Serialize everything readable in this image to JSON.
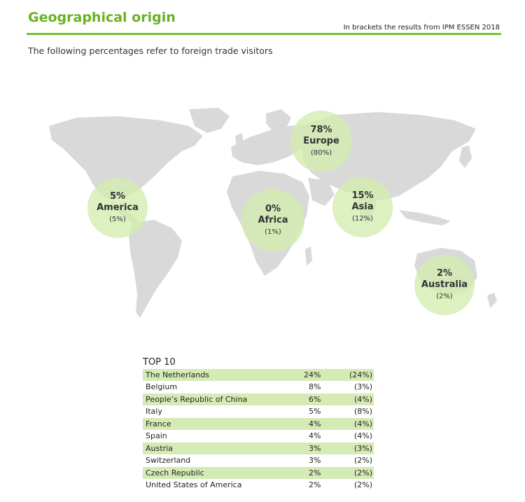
{
  "header": {
    "title": "Geographical origin",
    "bracket_note": "In brackets the results from IPM ESSEN 2018",
    "subtitle": "The following percentages refer to foreign trade visitors"
  },
  "regions": [
    {
      "key": "america",
      "pct": "5%",
      "name": "America",
      "prev": "(5%)"
    },
    {
      "key": "europe",
      "pct": "78%",
      "name": "Europe",
      "prev": "(80%)"
    },
    {
      "key": "africa",
      "pct": "0%",
      "name": "Africa",
      "prev": "(1%)"
    },
    {
      "key": "asia",
      "pct": "15%",
      "name": "Asia",
      "prev": "(12%)"
    },
    {
      "key": "australia",
      "pct": "2%",
      "name": "Australia",
      "prev": "(2%)"
    }
  ],
  "top10": {
    "title": "TOP 10",
    "rows": [
      {
        "country": "The Netherlands",
        "pct": "24%",
        "prev": "(24%)"
      },
      {
        "country": "Belgium",
        "pct": "8%",
        "prev": "(3%)"
      },
      {
        "country": "People’s Republic of China",
        "pct": "6%",
        "prev": "(4%)"
      },
      {
        "country": "Italy",
        "pct": "5%",
        "prev": "(8%)"
      },
      {
        "country": "France",
        "pct": "4%",
        "prev": "(4%)"
      },
      {
        "country": "Spain",
        "pct": "4%",
        "prev": "(4%)"
      },
      {
        "country": "Austria",
        "pct": "3%",
        "prev": "(3%)"
      },
      {
        "country": "Switzerland",
        "pct": "3%",
        "prev": "(2%)"
      },
      {
        "country": "Czech Republic",
        "pct": "2%",
        "prev": "(2%)"
      },
      {
        "country": "United States of America",
        "pct": "2%",
        "prev": "(2%)"
      }
    ]
  },
  "colors": {
    "accent": "#6ab023",
    "map_land": "#d9d9d9",
    "bubble": "#d2ecae",
    "row_shade": "#d4ebb4"
  }
}
